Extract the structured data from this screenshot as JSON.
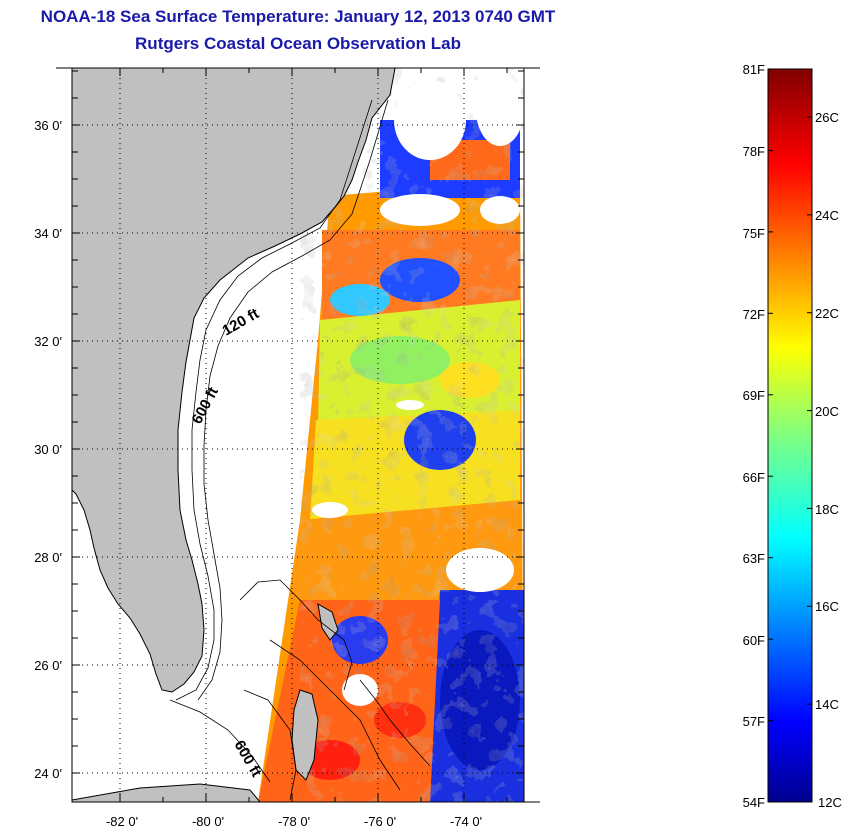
{
  "title": "NOAA-18 Sea Surface Temperature:  January 12, 2013 0740 GMT",
  "subtitle": "Rutgers Coastal Ocean Observation Lab",
  "map": {
    "lat_labels": [
      "36 0'",
      "34 0'",
      "32 0'",
      "30 0'",
      "28 0'",
      "26 0'",
      "24 0'"
    ],
    "lat_values": [
      36,
      34,
      32,
      30,
      28,
      26,
      24
    ],
    "lon_labels": [
      "-82 0'",
      "-80 0'",
      "-78 0'",
      "-76 0'",
      "-74 0'"
    ],
    "lon_values": [
      -82,
      -80,
      -78,
      -76,
      -74
    ],
    "lon_range": [
      -83,
      -73
    ],
    "lat_range": [
      23,
      37
    ],
    "contour_labels": [
      "120 ft",
      "600 ft",
      "600 ft"
    ],
    "land_color": "#c0c0c0",
    "contour_color": "#000000"
  },
  "colorbar": {
    "f_labels": [
      "81F",
      "78F",
      "75F",
      "72F",
      "69F",
      "66F",
      "63F",
      "60F",
      "57F",
      "54F"
    ],
    "c_labels": [
      "26C",
      "24C",
      "22C",
      "20C",
      "18C",
      "16C",
      "14C",
      "12C"
    ],
    "c_min": 12,
    "c_max": 27,
    "colormap": "jet"
  }
}
